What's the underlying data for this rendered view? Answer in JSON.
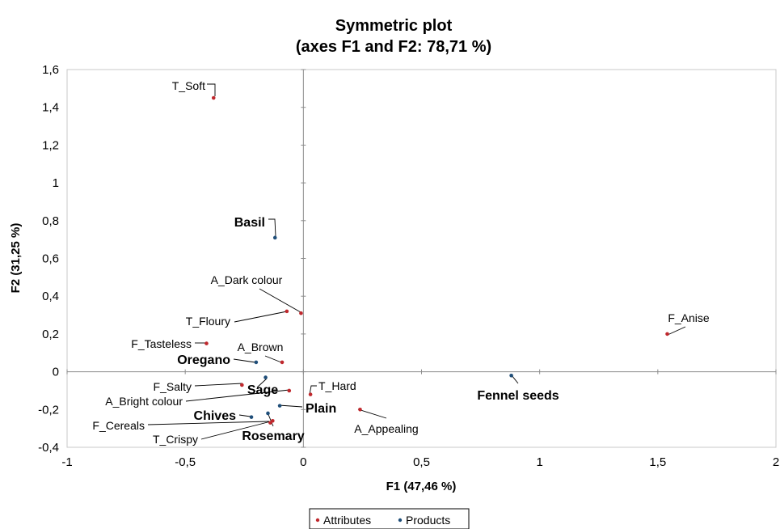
{
  "chart_data": {
    "type": "scatter",
    "title": [
      "Symmetric plot",
      "(axes F1 and F2: 78,71 %)"
    ],
    "xlabel": "F1 (47,46 %)",
    "ylabel": "F2 (31,25 %)",
    "xlim": [
      -1,
      2
    ],
    "ylim": [
      -0.4,
      1.6
    ],
    "xticks": [
      "-1",
      "-0,5",
      "0",
      "0,5",
      "1",
      "1,5",
      "2"
    ],
    "yticks": [
      "-0,4",
      "-0,2",
      "0",
      "0,2",
      "0,4",
      "0,6",
      "0,8",
      "1",
      "1,2",
      "1,4",
      "1,6"
    ],
    "grid": false,
    "legend": "bottom-center",
    "series": [
      {
        "name": "Attributes",
        "color": "#c0282d",
        "points": [
          {
            "label": "T_Soft",
            "x": -0.38,
            "y": 1.45
          },
          {
            "label": "A_Dark colour",
            "x": -0.01,
            "y": 0.31
          },
          {
            "label": "T_Floury",
            "x": -0.07,
            "y": 0.32
          },
          {
            "label": "F_Tasteless",
            "x": -0.41,
            "y": 0.15
          },
          {
            "label": "A_Brown",
            "x": -0.09,
            "y": 0.05
          },
          {
            "label": "F_Anise",
            "x": 1.54,
            "y": 0.2
          },
          {
            "label": "F_Salty",
            "x": -0.26,
            "y": -0.07
          },
          {
            "label": "A_Bright colour",
            "x": -0.06,
            "y": -0.1
          },
          {
            "label": "T_Hard",
            "x": 0.03,
            "y": -0.12
          },
          {
            "label": "A_Appealing",
            "x": 0.24,
            "y": -0.2
          },
          {
            "label": "F_Cereals",
            "x": -0.14,
            "y": -0.27
          },
          {
            "label": "T_Crispy",
            "x": -0.13,
            "y": -0.26
          }
        ]
      },
      {
        "name": "Products",
        "color": "#1f4e79",
        "points": [
          {
            "label": "Basil",
            "x": -0.12,
            "y": 0.71
          },
          {
            "label": "Oregano",
            "x": -0.2,
            "y": 0.05
          },
          {
            "label": "Sage",
            "x": -0.16,
            "y": -0.03
          },
          {
            "label": "Plain",
            "x": -0.1,
            "y": -0.18
          },
          {
            "label": "Chives",
            "x": -0.22,
            "y": -0.24
          },
          {
            "label": "Rosemary",
            "x": -0.15,
            "y": -0.22
          },
          {
            "label": "Fennel seeds",
            "x": 0.88,
            "y": -0.02
          }
        ]
      }
    ]
  }
}
